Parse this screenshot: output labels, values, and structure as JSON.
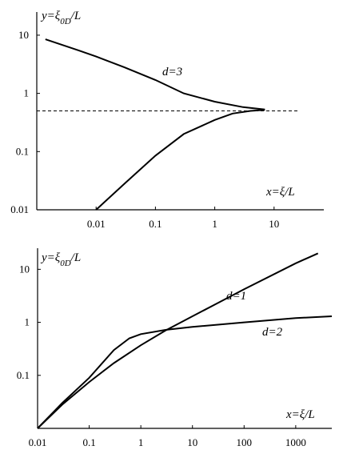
{
  "chart_data": [
    {
      "type": "line",
      "log_x": true,
      "log_y": true,
      "xlabel": "x=ξ/L",
      "ylabel": [
        "y=ξ",
        "0D",
        "/L"
      ],
      "xlim": [
        0.001,
        100
      ],
      "ylim": [
        0.01,
        25
      ],
      "xticks": [
        0.01,
        0.1,
        1,
        10
      ],
      "yticks": [
        0.01,
        0.1,
        1,
        10
      ],
      "series": [
        {
          "name": "d=3",
          "color": "#000000",
          "x": [
            0.0014,
            0.005,
            0.01,
            0.03,
            0.1,
            0.3,
            1,
            3,
            7
          ],
          "values": [
            8.5,
            5.5,
            4.3,
            2.8,
            1.7,
            1.0,
            0.72,
            0.58,
            0.53
          ]
        },
        {
          "color": "#000000",
          "x": [
            0.01,
            0.03,
            0.1,
            0.3,
            1,
            2,
            4,
            7
          ],
          "values": [
            0.01,
            0.028,
            0.085,
            0.2,
            0.35,
            0.45,
            0.5,
            0.52
          ]
        },
        {
          "color": "#000000",
          "linestyle": "dashed",
          "x": [
            0.001,
            25
          ],
          "values": [
            0.5,
            0.5
          ]
        }
      ]
    },
    {
      "type": "line",
      "log_x": true,
      "log_y": true,
      "xlabel": "x=ξ/L",
      "ylabel": [
        "y=ξ",
        "0D",
        "/L"
      ],
      "xlim": [
        0.01,
        5000
      ],
      "ylim": [
        0.01,
        25
      ],
      "xticks": [
        0.01,
        0.1,
        1,
        10,
        100,
        1000
      ],
      "yticks": [
        0.1,
        1,
        10
      ],
      "series": [
        {
          "name": "d=1",
          "color": "#000000",
          "x": [
            0.01,
            0.03,
            0.1,
            0.3,
            1,
            3,
            10,
            100,
            1000,
            2700
          ],
          "values": [
            0.01,
            0.028,
            0.075,
            0.17,
            0.37,
            0.7,
            1.3,
            4.2,
            13,
            20
          ]
        },
        {
          "name": "d=2",
          "color": "#000000",
          "x": [
            0.01,
            0.03,
            0.1,
            0.3,
            0.6,
            1,
            3,
            10,
            100,
            1000,
            5000
          ],
          "values": [
            0.01,
            0.03,
            0.09,
            0.3,
            0.5,
            0.6,
            0.72,
            0.82,
            1.0,
            1.2,
            1.3
          ]
        }
      ]
    }
  ]
}
